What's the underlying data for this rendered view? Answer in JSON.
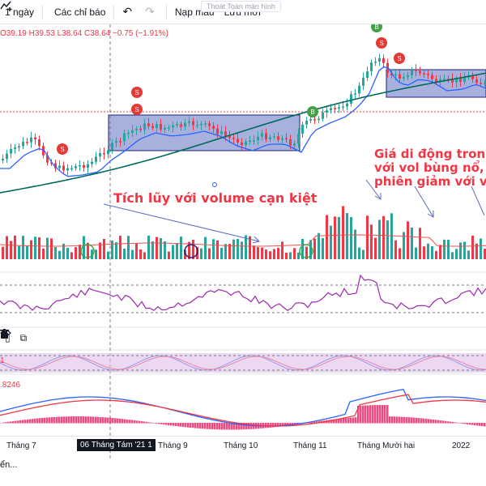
{
  "toolbar": {
    "timeframe_label": "1 ngày",
    "indicators_label": "Các chỉ báo",
    "templates_label": "Nạp mẫu",
    "save_label": "Lưu mới",
    "tooltip_text": "Thoát Toàn màn hình"
  },
  "ohlc": {
    "open": "O39.19",
    "high": "H39.53",
    "low": "L38.64",
    "close": "C38.64",
    "change": "−0.75 (−1.91%)"
  },
  "annotations": {
    "accumulation": "Tích lũy với volume cạn kiệt",
    "price_move_line1": "Giá di động tron",
    "price_move_line2": "với vol bùng nổ,",
    "price_move_line3": "phiên giảm với v"
  },
  "signals": {
    "sell": "S",
    "buy": "B"
  },
  "oscillator": {
    "value": "1"
  },
  "macd": {
    "value": ".8246"
  },
  "time_axis": {
    "labels": [
      "Tháng 7",
      "Tháng 9",
      "Tháng 10",
      "Tháng 11",
      "Tháng Mười hai",
      "2022"
    ],
    "crosshair_label": "06 Tháng Tám '21",
    "crosshair_suffix": "1"
  },
  "bottom_text": "ển...",
  "colors": {
    "up": "#26a69a",
    "down": "#f23645",
    "ma_fast": "#2962ff",
    "ma_slow": "#00695c",
    "zone_fill": "#3f51b5",
    "rsi": "#9c27b0",
    "annotation": "#f23645"
  },
  "icons": [
    "indicators-icon",
    "undo-icon",
    "redo-icon",
    "lock-icon",
    "eye-icon",
    "trash-icon"
  ]
}
